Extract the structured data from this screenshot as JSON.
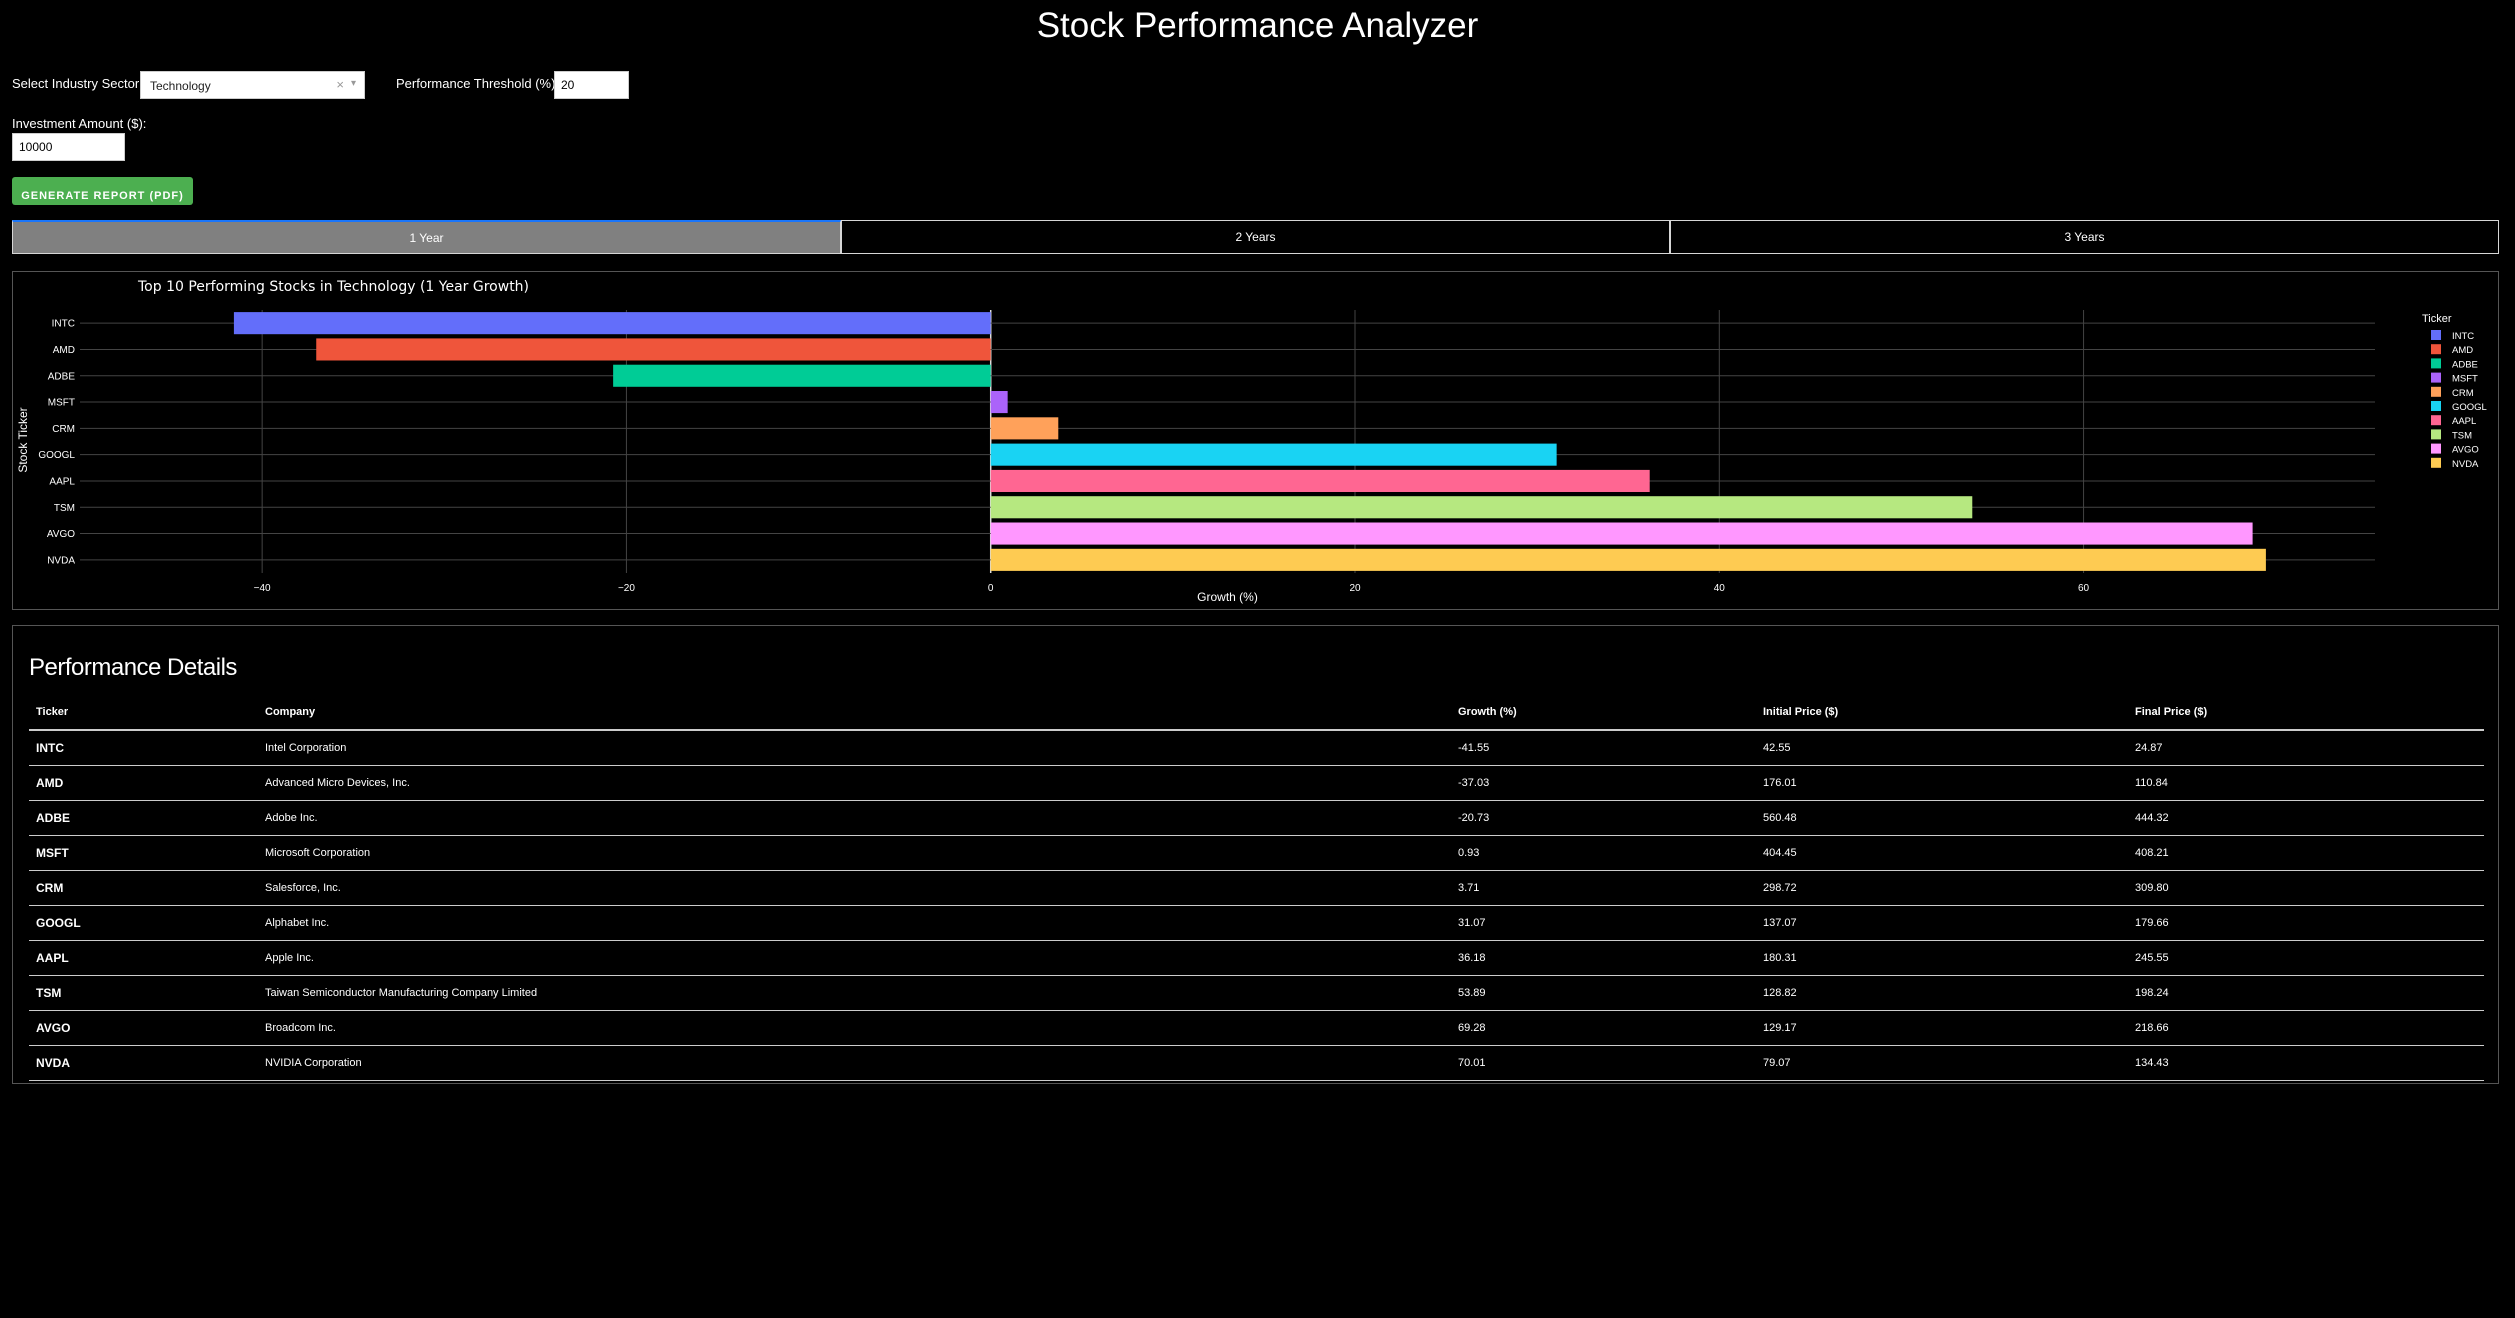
{
  "header": {
    "title": "Stock Performance Analyzer"
  },
  "controls": {
    "sector_label": "Select Industry Sector:",
    "sector_value": "Technology",
    "threshold_label": "Performance Threshold (%):",
    "threshold_value": "20",
    "investment_label": "Investment Amount ($):",
    "investment_value": "10000",
    "report_button": "GENERATE REPORT (PDF)"
  },
  "tabs": [
    {
      "label": "1 Year",
      "active": true
    },
    {
      "label": "2 Years",
      "active": false
    },
    {
      "label": "3 Years",
      "active": false
    }
  ],
  "chart_data": {
    "type": "bar",
    "orientation": "horizontal",
    "title": "Top 10 Performing Stocks in Technology (1 Year Growth)",
    "xlabel": "Growth (%)",
    "ylabel": "Stock Ticker",
    "legend_title": "Ticker",
    "legend_position": "right",
    "xlim": [
      -50,
      76
    ],
    "xticks": [
      -40,
      -20,
      0,
      20,
      40,
      60
    ],
    "xtick_labels": [
      "−40",
      "−20",
      "0",
      "20",
      "40",
      "60"
    ],
    "grid": true,
    "categories": [
      "INTC",
      "AMD",
      "ADBE",
      "MSFT",
      "CRM",
      "GOOGL",
      "AAPL",
      "TSM",
      "AVGO",
      "NVDA"
    ],
    "values": [
      -41.55,
      -37.03,
      -20.73,
      0.93,
      3.71,
      31.07,
      36.18,
      53.89,
      69.28,
      70.01
    ],
    "colors": [
      "#636efa",
      "#ef553b",
      "#00cc96",
      "#ab63fa",
      "#ffa15a",
      "#19d3f3",
      "#ff6692",
      "#b6e880",
      "#ff97ff",
      "#fecb52"
    ]
  },
  "details": {
    "title": "Performance Details",
    "columns": [
      "Ticker",
      "Company",
      "Growth (%)",
      "Initial Price ($)",
      "Final Price ($)"
    ],
    "rows": [
      [
        "INTC",
        "Intel Corporation",
        "-41.55",
        "42.55",
        "24.87"
      ],
      [
        "AMD",
        "Advanced Micro Devices, Inc.",
        "-37.03",
        "176.01",
        "110.84"
      ],
      [
        "ADBE",
        "Adobe Inc.",
        "-20.73",
        "560.48",
        "444.32"
      ],
      [
        "MSFT",
        "Microsoft Corporation",
        "0.93",
        "404.45",
        "408.21"
      ],
      [
        "CRM",
        "Salesforce, Inc.",
        "3.71",
        "298.72",
        "309.80"
      ],
      [
        "GOOGL",
        "Alphabet Inc.",
        "31.07",
        "137.07",
        "179.66"
      ],
      [
        "AAPL",
        "Apple Inc.",
        "36.18",
        "180.31",
        "245.55"
      ],
      [
        "TSM",
        "Taiwan Semiconductor Manufacturing Company Limited",
        "53.89",
        "128.82",
        "198.24"
      ],
      [
        "AVGO",
        "Broadcom Inc.",
        "69.28",
        "129.17",
        "218.66"
      ],
      [
        "NVDA",
        "NVIDIA Corporation",
        "70.01",
        "79.07",
        "134.43"
      ]
    ]
  }
}
